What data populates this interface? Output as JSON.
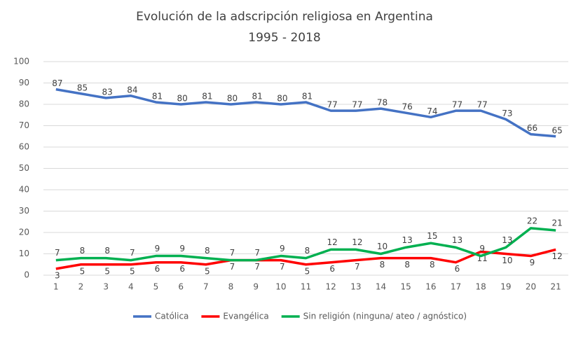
{
  "chart_data": {
    "type": "line",
    "title": "Evolución de la adscripción religiosa en Argentina",
    "subtitle": "1995 - 2018",
    "categories": [
      "1",
      "2",
      "3",
      "4",
      "5",
      "6",
      "7",
      "8",
      "9",
      "10",
      "11",
      "12",
      "13",
      "14",
      "15",
      "16",
      "17",
      "18",
      "19",
      "20",
      "21"
    ],
    "series": [
      {
        "name": "Católica",
        "color": "#4472c4",
        "values": [
          87,
          85,
          83,
          84,
          81,
          80,
          81,
          80,
          81,
          80,
          81,
          77,
          77,
          78,
          76,
          74,
          77,
          77,
          73,
          66,
          65
        ]
      },
      {
        "name": "Evangélica",
        "color": "#ff0000",
        "values": [
          3,
          5,
          5,
          5,
          6,
          6,
          5,
          7,
          7,
          7,
          5,
          6,
          7,
          8,
          8,
          8,
          6,
          11,
          10,
          9,
          12
        ]
      },
      {
        "name": "Sin religión (ninguna/ ateo / agnóstico)",
        "color": "#00b050",
        "values": [
          7,
          8,
          8,
          7,
          9,
          9,
          8,
          7,
          7,
          9,
          8,
          12,
          12,
          10,
          13,
          15,
          13,
          9,
          13,
          22,
          21
        ]
      }
    ],
    "ylim": [
      0,
      100
    ],
    "yticks": [
      0,
      10,
      20,
      30,
      40,
      50,
      60,
      70,
      80,
      90,
      100
    ],
    "grid": true,
    "legend": "bottom"
  }
}
